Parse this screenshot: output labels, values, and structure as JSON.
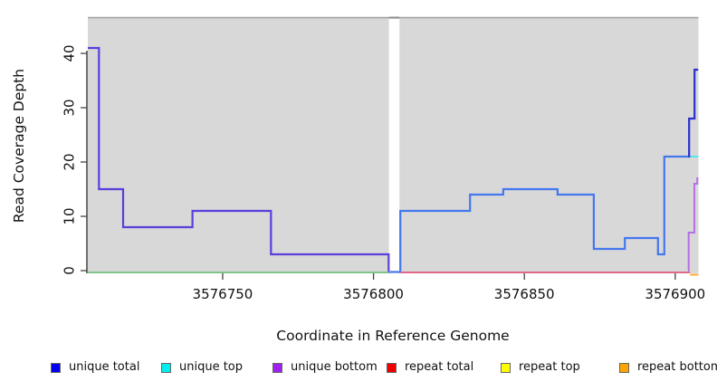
{
  "chart_data": {
    "type": "line",
    "subtype": "step-coverage",
    "title": "",
    "xlabel": "Coordinate in Reference Genome",
    "ylabel": "Read Coverage Depth",
    "x_tick_values": [
      3576750,
      3576800,
      3576850,
      3576900
    ],
    "x_tick_labels": [
      "3576750",
      "3576800",
      "3576850",
      "3576900"
    ],
    "y_tick_values": [
      0,
      10,
      20,
      30,
      40
    ],
    "y_tick_labels": [
      "0",
      "10",
      "20",
      "30",
      "40"
    ],
    "xlim": [
      3576705.3,
      3576907.7
    ],
    "ylim": [
      0,
      46.5
    ],
    "grid": false,
    "panel_bg": "#d8d8d8",
    "panel_border_color": "#9c9c9c",
    "gap": {
      "from": 3576805.1,
      "to": 3576808.6,
      "note": "white no-data band"
    },
    "legend_position": "bottom",
    "legend": [
      {
        "label": "unique total",
        "color": "#0000EE"
      },
      {
        "label": "unique top",
        "color": "#00EEEE"
      },
      {
        "label": "unique bottom",
        "color": "#A020F0"
      },
      {
        "label": "repeat total",
        "color": "#EE0000"
      },
      {
        "label": "repeat top",
        "color": "#FFFF00"
      },
      {
        "label": "repeat bottom",
        "color": "#FFA500"
      }
    ],
    "series": [
      {
        "name": "zero-baseline-left",
        "color": "#63BE6E",
        "width": 1.6,
        "offset": 2,
        "steps": [
          [
            3576705.3,
            0
          ]
        ],
        "end": 3576805.1
      },
      {
        "name": "repeat-total",
        "color": "#E2476F",
        "width": 1.6,
        "offset": 2,
        "steps": [
          [
            3576808.6,
            0
          ]
        ],
        "end": 3576904.9
      },
      {
        "name": "repeat-bottom",
        "color": "#FFA520",
        "width": 1.8,
        "offset": 4.5,
        "steps": [
          [
            3576904.9,
            0
          ]
        ],
        "end": 3576907.7
      },
      {
        "name": "unique-total-gap-zero",
        "color": "#4477EE",
        "width": 2.2,
        "offset": 1.5,
        "steps": [
          [
            3576804.9,
            0
          ]
        ],
        "end": 3576808.9
      },
      {
        "name": "unique-top",
        "color": "#55E8E8",
        "width": 2.0,
        "offset": 0,
        "steps": [
          [
            3576896.4,
            21
          ]
        ],
        "end": 3576907.7
      },
      {
        "name": "unique-bottom-right",
        "color": "#B470E4",
        "width": 2.0,
        "offset": 0,
        "steps": [
          [
            3576904.3,
            0
          ],
          [
            3576904.45,
            7
          ],
          [
            3576906.35,
            16
          ],
          [
            3576907.3,
            17
          ]
        ],
        "end": 3576907.7
      },
      {
        "name": "unique-total-left",
        "color": "#5B3EDC",
        "width": 2.2,
        "offset": 0,
        "steps": [
          [
            3576705.3,
            41
          ],
          [
            3576709,
            15
          ],
          [
            3576717,
            8
          ],
          [
            3576740,
            11
          ],
          [
            3576766,
            3
          ],
          [
            3576805.0,
            0
          ]
        ],
        "end": 3576805.1
      },
      {
        "name": "unique-total-right",
        "color": "#4477EE",
        "width": 2.2,
        "offset": 0,
        "steps": [
          [
            3576808.7,
            0
          ],
          [
            3576808.9,
            11
          ],
          [
            3576832,
            14
          ],
          [
            3576843,
            15
          ],
          [
            3576861,
            14
          ],
          [
            3576873,
            4
          ],
          [
            3576883.3,
            6
          ],
          [
            3576894.3,
            3
          ],
          [
            3576896.4,
            21
          ]
        ],
        "end": 3576904.5
      },
      {
        "name": "unique-total-peak",
        "color": "#2A2FD0",
        "width": 2.2,
        "offset": 0,
        "steps": [
          [
            3576904.4,
            21
          ],
          [
            3576904.6,
            28
          ],
          [
            3576906.4,
            37
          ]
        ],
        "end": 3576907.6
      }
    ]
  }
}
